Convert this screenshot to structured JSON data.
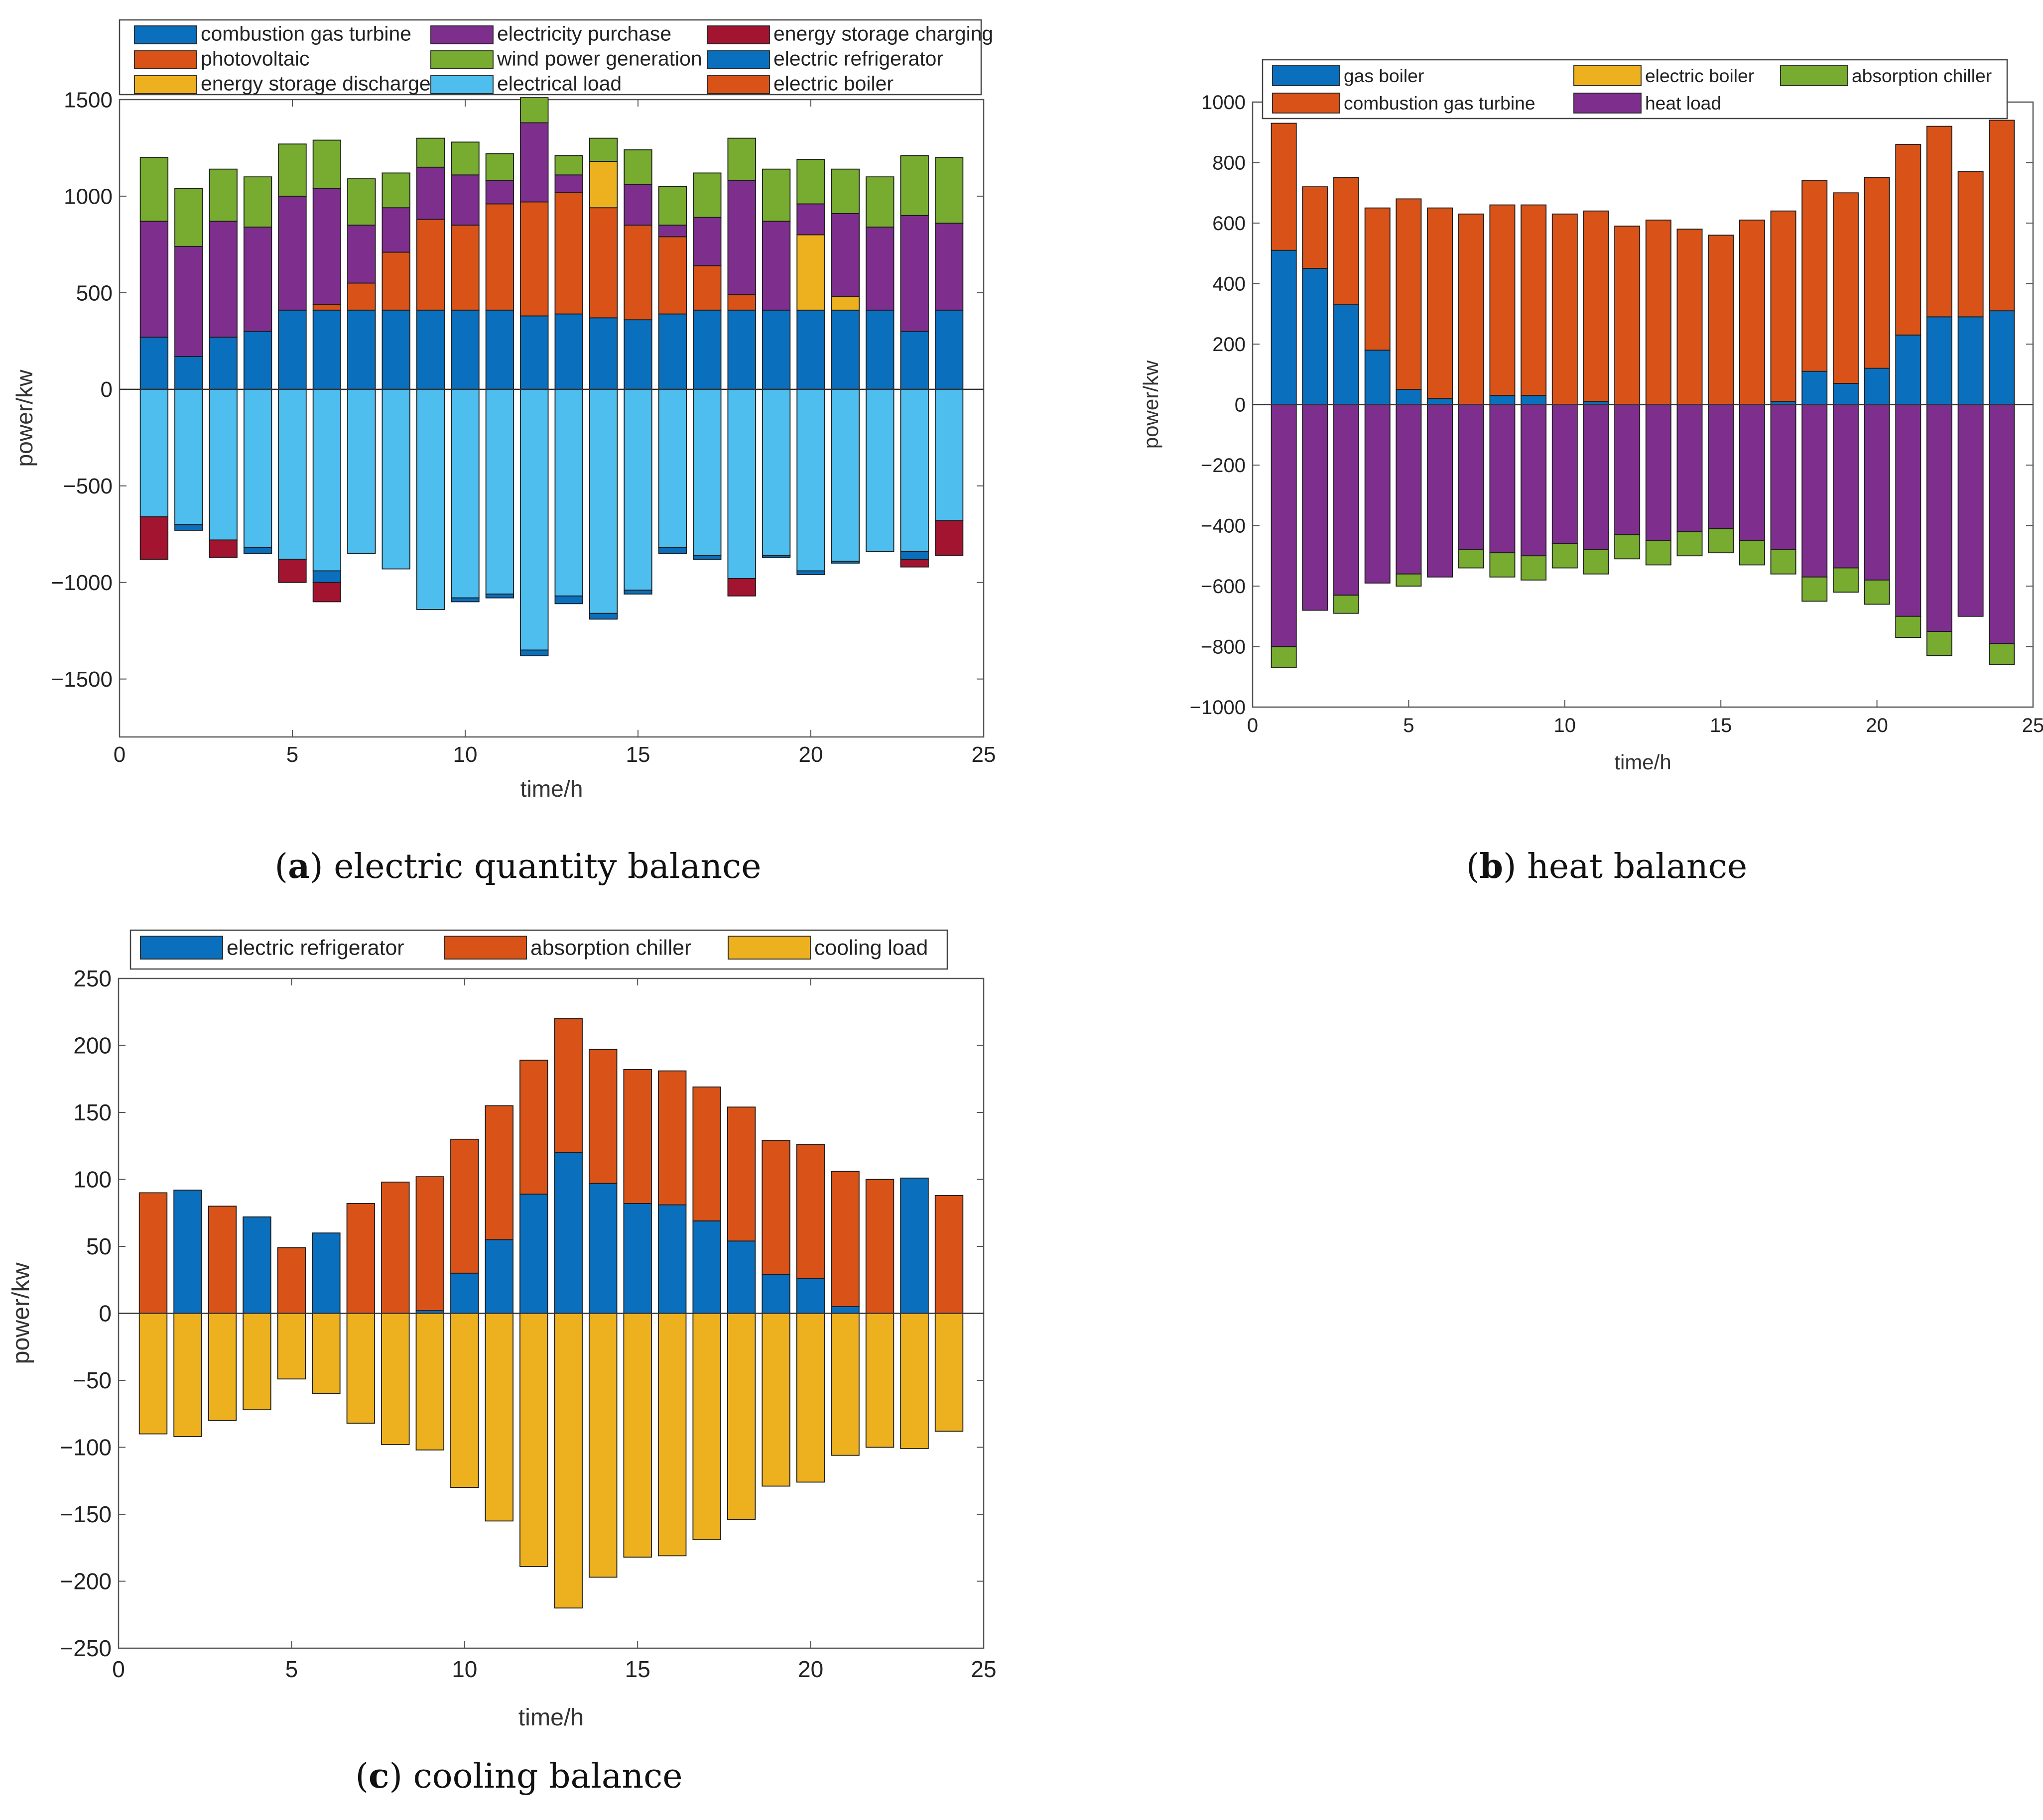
{
  "colors": {
    "combustion_gas_turbine": "#0a6fbd",
    "photovoltaic": "#d95319",
    "energy_storage_discharge": "#edb120",
    "electricity_purchase": "#7e2f8e",
    "wind_power_generation": "#77ac30",
    "electrical_load": "#4dbeee",
    "energy_storage_charging": "#a2142f",
    "electric_refrigerator": "#0a6fbd",
    "electric_boiler_a": "#d95319",
    "gas_boiler": "#0a6fbd",
    "electric_boiler_b": "#edb120",
    "absorption_chiller": "#77ac30",
    "heat_turbine": "#d95319",
    "heat_load": "#7e2f8e",
    "cool_refrigerator": "#0a6fbd",
    "cool_chiller": "#d95319",
    "cooling_load": "#edb120"
  },
  "captions": {
    "a": {
      "letter": "a",
      "text": ") electric quantity balance"
    },
    "b": {
      "letter": "b",
      "text": ") heat balance"
    },
    "c": {
      "letter": "c",
      "text": ") cooling balance"
    }
  },
  "chart_data": [
    {
      "id": "electric",
      "type": "bar",
      "stacked": true,
      "title": "electric quantity balance",
      "xlabel": "time/h",
      "ylabel": "power/kw",
      "xlim": [
        0,
        25
      ],
      "ylim": [
        -1800,
        1500
      ],
      "xticks": [
        0,
        5,
        10,
        15,
        20,
        25
      ],
      "yticks": [
        -1500,
        -1000,
        -500,
        0,
        500,
        1000,
        1500
      ],
      "yticklabels": [
        "−1500",
        "−1000",
        "−500",
        "0",
        "500",
        "1000",
        "1500"
      ],
      "x": [
        1,
        2,
        3,
        4,
        5,
        6,
        7,
        8,
        9,
        10,
        11,
        12,
        13,
        14,
        15,
        16,
        17,
        18,
        19,
        20,
        21,
        22,
        23,
        24
      ],
      "legend": [
        {
          "label": "combustion gas turbine",
          "color": "#0a6fbd"
        },
        {
          "label": "electricity purchase",
          "color": "#7e2f8e"
        },
        {
          "label": "energy storage charging",
          "color": "#a2142f"
        },
        {
          "label": "photovoltaic",
          "color": "#d95319"
        },
        {
          "label": "wind power generation",
          "color": "#77ac30"
        },
        {
          "label": "electric refrigerator",
          "color": "#0a6fbd"
        },
        {
          "label": "energy storage discharge",
          "color": "#edb120"
        },
        {
          "label": "electrical load",
          "color": "#4dbeee"
        },
        {
          "label": "electric boiler",
          "color": "#d95319"
        }
      ],
      "positive_series": [
        {
          "name": "combustion gas turbine",
          "color": "#0a6fbd",
          "values": [
            270,
            170,
            270,
            300,
            410,
            410,
            410,
            410,
            410,
            410,
            410,
            380,
            390,
            370,
            360,
            390,
            410,
            410,
            410,
            410,
            410,
            410,
            300,
            410
          ]
        },
        {
          "name": "photovoltaic",
          "color": "#d95319",
          "values": [
            0,
            0,
            0,
            0,
            0,
            30,
            140,
            300,
            470,
            440,
            550,
            590,
            630,
            570,
            490,
            400,
            230,
            80,
            0,
            0,
            0,
            0,
            0,
            0
          ]
        },
        {
          "name": "energy storage discharge",
          "color": "#edb120",
          "values": [
            0,
            0,
            0,
            0,
            0,
            0,
            0,
            0,
            0,
            0,
            0,
            0,
            0,
            240,
            0,
            0,
            0,
            0,
            0,
            390,
            70,
            0,
            0,
            0
          ]
        },
        {
          "name": "electricity purchase",
          "color": "#7e2f8e",
          "values": [
            600,
            570,
            600,
            540,
            590,
            600,
            300,
            230,
            270,
            260,
            120,
            410,
            90,
            0,
            210,
            60,
            250,
            590,
            460,
            160,
            430,
            430,
            600,
            450
          ]
        },
        {
          "name": "wind power generation",
          "color": "#77ac30",
          "values": [
            330,
            300,
            270,
            260,
            270,
            250,
            240,
            180,
            150,
            170,
            140,
            130,
            100,
            120,
            180,
            200,
            230,
            220,
            270,
            230,
            230,
            260,
            310,
            340
          ]
        }
      ],
      "negative_series": [
        {
          "name": "electrical load",
          "color": "#4dbeee",
          "values": [
            -660,
            -700,
            -780,
            -820,
            -880,
            -940,
            -850,
            -930,
            -1140,
            -1080,
            -1060,
            -1350,
            -1070,
            -1160,
            -1040,
            -820,
            -860,
            -980,
            -860,
            -940,
            -890,
            -840,
            -840,
            -680
          ]
        },
        {
          "name": "electric refrigerator",
          "color": "#0a6fbd",
          "values": [
            0,
            -30,
            0,
            -30,
            0,
            -60,
            0,
            0,
            0,
            -20,
            -20,
            -30,
            -40,
            -30,
            -20,
            -30,
            -20,
            0,
            -10,
            -20,
            -10,
            0,
            -40,
            0
          ]
        },
        {
          "name": "energy storage charging",
          "color": "#a2142f",
          "values": [
            -220,
            0,
            -90,
            0,
            -120,
            -100,
            0,
            0,
            0,
            0,
            0,
            0,
            0,
            0,
            0,
            0,
            0,
            -90,
            0,
            0,
            0,
            0,
            -40,
            -180
          ]
        }
      ]
    },
    {
      "id": "heat",
      "type": "bar",
      "stacked": true,
      "title": "heat balance",
      "xlabel": "time/h",
      "ylabel": "power/kw",
      "xlim": [
        0,
        25
      ],
      "ylim": [
        -1000,
        1000
      ],
      "xticks": [
        0,
        5,
        10,
        15,
        20,
        25
      ],
      "yticks": [
        -1000,
        -800,
        -600,
        -400,
        -200,
        0,
        200,
        400,
        600,
        800,
        1000
      ],
      "yticklabels": [
        "−1000",
        "−800",
        "−600",
        "−400",
        "−200",
        "0",
        "200",
        "400",
        "600",
        "800",
        "1000"
      ],
      "x": [
        1,
        2,
        3,
        4,
        5,
        6,
        7,
        8,
        9,
        10,
        11,
        12,
        13,
        14,
        15,
        16,
        17,
        18,
        19,
        20,
        21,
        22,
        23,
        24
      ],
      "legend": [
        {
          "label": "gas boiler",
          "color": "#0a6fbd"
        },
        {
          "label": "electric boiler",
          "color": "#edb120"
        },
        {
          "label": "absorption chiller",
          "color": "#77ac30"
        },
        {
          "label": "combustion gas turbine",
          "color": "#d95319"
        },
        {
          "label": "heat load",
          "color": "#7e2f8e"
        }
      ],
      "positive_series": [
        {
          "name": "gas boiler",
          "color": "#0a6fbd",
          "values": [
            510,
            450,
            330,
            180,
            50,
            20,
            0,
            30,
            30,
            0,
            10,
            0,
            0,
            0,
            0,
            0,
            10,
            110,
            70,
            120,
            230,
            290,
            290,
            310
          ]
        },
        {
          "name": "combustion gas turbine",
          "color": "#d95319",
          "values": [
            420,
            270,
            420,
            470,
            630,
            630,
            630,
            630,
            630,
            630,
            630,
            590,
            610,
            580,
            560,
            610,
            630,
            630,
            630,
            630,
            630,
            630,
            480,
            630
          ]
        }
      ],
      "negative_series": [
        {
          "name": "heat load",
          "color": "#7e2f8e",
          "values": [
            -800,
            -680,
            -630,
            -590,
            -560,
            -570,
            -480,
            -490,
            -500,
            -460,
            -480,
            -430,
            -450,
            -420,
            -410,
            -450,
            -480,
            -570,
            -540,
            -580,
            -700,
            -750,
            -700,
            -790
          ]
        },
        {
          "name": "absorption chiller",
          "color": "#77ac30",
          "values": [
            -70,
            0,
            -60,
            0,
            -40,
            0,
            -60,
            -80,
            -80,
            -80,
            -80,
            -80,
            -80,
            -80,
            -80,
            -80,
            -80,
            -80,
            -80,
            -80,
            -70,
            -80,
            0,
            -70
          ]
        }
      ]
    },
    {
      "id": "cooling",
      "type": "bar",
      "stacked": true,
      "title": "cooling balance",
      "xlabel": "time/h",
      "ylabel": "power/kw",
      "xlim": [
        0,
        25
      ],
      "ylim": [
        -250,
        250
      ],
      "xticks": [
        0,
        5,
        10,
        15,
        20,
        25
      ],
      "yticks": [
        -250,
        -200,
        -150,
        -100,
        -50,
        0,
        50,
        100,
        150,
        200,
        250
      ],
      "yticklabels": [
        "−250",
        "−200",
        "−150",
        "−100",
        "−50",
        "0",
        "50",
        "100",
        "150",
        "200",
        "250"
      ],
      "x": [
        1,
        2,
        3,
        4,
        5,
        6,
        7,
        8,
        9,
        10,
        11,
        12,
        13,
        14,
        15,
        16,
        17,
        18,
        19,
        20,
        21,
        22,
        23,
        24
      ],
      "legend": [
        {
          "label": "electric refrigerator",
          "color": "#0a6fbd"
        },
        {
          "label": "absorption chiller",
          "color": "#d95319"
        },
        {
          "label": "cooling load",
          "color": "#edb120"
        }
      ],
      "positive_series": [
        {
          "name": "electric refrigerator",
          "color": "#0a6fbd",
          "values": [
            0,
            92,
            0,
            72,
            0,
            60,
            0,
            0,
            2,
            30,
            55,
            89,
            120,
            97,
            82,
            81,
            69,
            54,
            29,
            26,
            5,
            0,
            101,
            0
          ]
        },
        {
          "name": "absorption chiller",
          "color": "#d95319",
          "values": [
            90,
            0,
            80,
            0,
            49,
            0,
            82,
            98,
            100,
            100,
            100,
            100,
            100,
            100,
            100,
            100,
            100,
            100,
            100,
            100,
            101,
            100,
            0,
            88
          ]
        }
      ],
      "negative_series": [
        {
          "name": "cooling load",
          "color": "#edb120",
          "values": [
            -90,
            -92,
            -80,
            -72,
            -49,
            -60,
            -82,
            -98,
            -102,
            -130,
            -155,
            -189,
            -220,
            -197,
            -182,
            -181,
            -169,
            -154,
            -129,
            -126,
            -106,
            -100,
            -101,
            -88
          ]
        }
      ]
    }
  ]
}
